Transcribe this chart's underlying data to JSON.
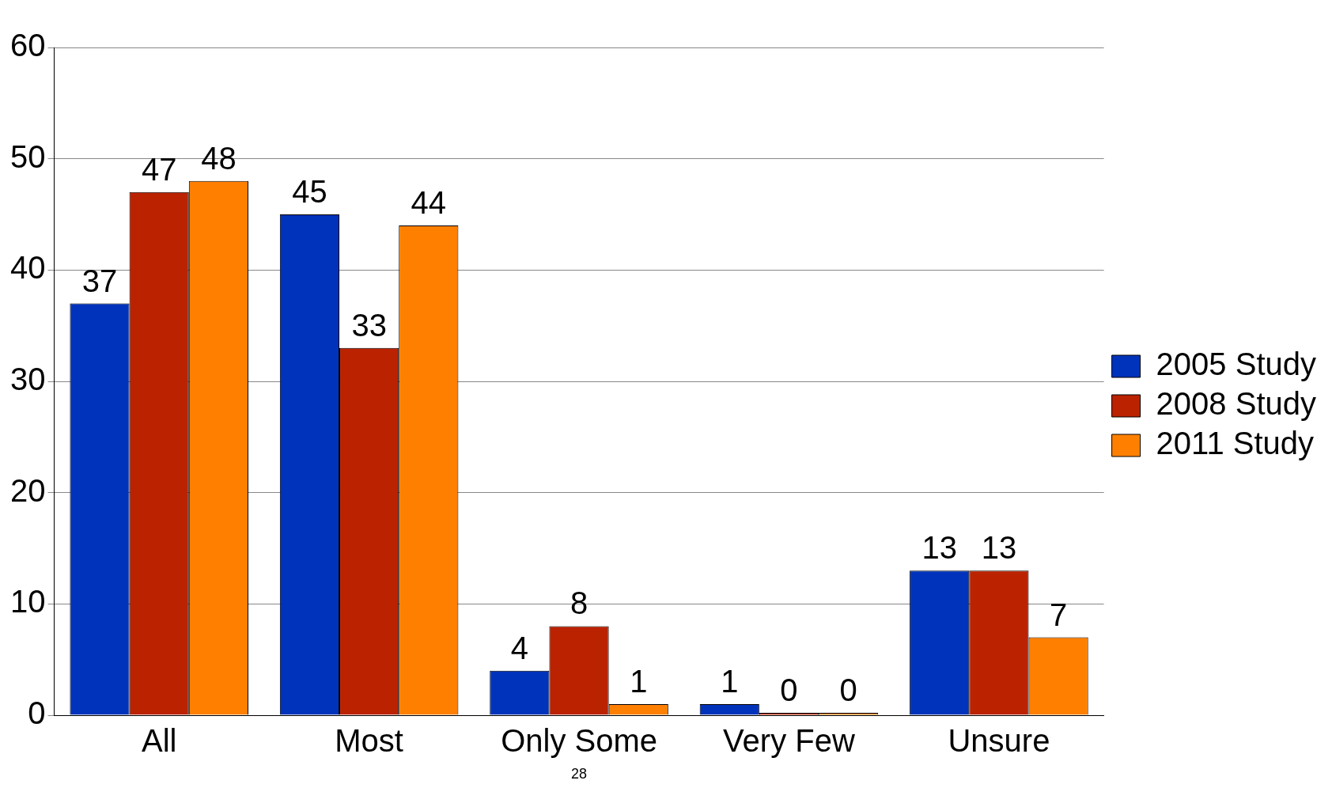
{
  "chart_data": {
    "type": "bar",
    "categories": [
      "All",
      "Most",
      "Only Some",
      "Very Few",
      "Unsure"
    ],
    "series": [
      {
        "name": "2005 Study",
        "color": "#0033bb",
        "values": [
          37,
          45,
          4,
          1,
          13
        ]
      },
      {
        "name": "2008 Study",
        "color": "#bb2200",
        "values": [
          47,
          33,
          8,
          0,
          13
        ]
      },
      {
        "name": "2011 Study",
        "color": "#ff8000",
        "values": [
          48,
          44,
          1,
          0,
          7
        ]
      }
    ],
    "ylim": [
      0,
      60
    ],
    "yticks": [
      0,
      10,
      20,
      30,
      40,
      50,
      60
    ],
    "grid": "y",
    "legend": "right",
    "data_labels": true,
    "annotations": [
      "28"
    ]
  }
}
